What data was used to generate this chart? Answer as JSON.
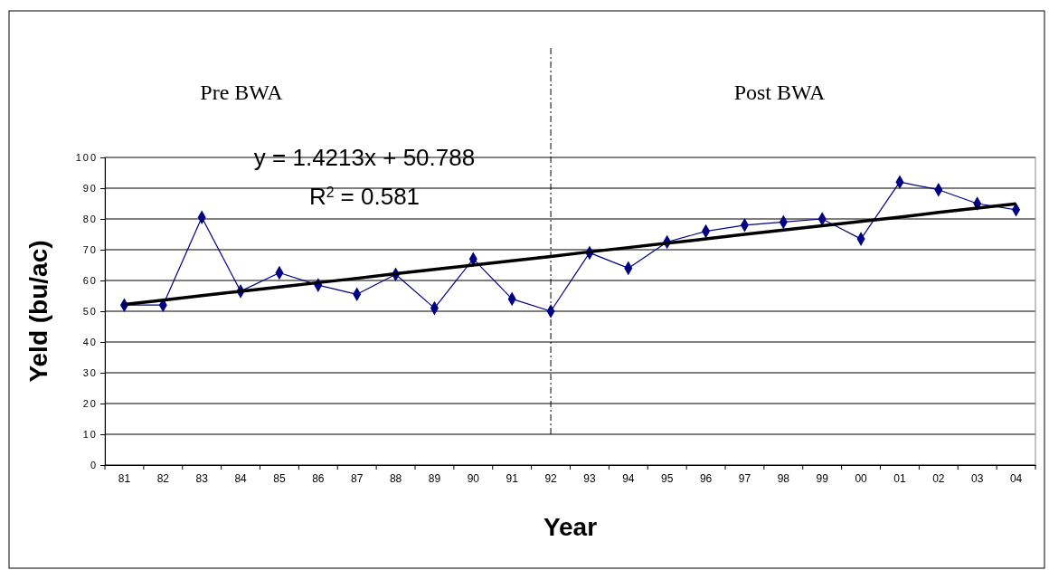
{
  "chart_data": {
    "type": "line",
    "xlabel": "Year",
    "ylabel": "Yeld (bu/ac)",
    "categories": [
      "81",
      "82",
      "83",
      "84",
      "85",
      "86",
      "87",
      "88",
      "89",
      "90",
      "91",
      "92",
      "93",
      "94",
      "95",
      "96",
      "97",
      "98",
      "99",
      "00",
      "01",
      "02",
      "03",
      "04"
    ],
    "series": [
      {
        "type": "line",
        "color": "#000080",
        "marker": "diamond",
        "values": [
          52,
          52,
          80.5,
          56.5,
          62.5,
          58.5,
          55.5,
          62,
          51,
          67,
          54,
          50,
          69,
          64,
          72.5,
          76,
          78,
          79,
          80,
          73.5,
          92,
          89.5,
          85,
          83
        ]
      },
      {
        "type": "line",
        "color": "#000000",
        "marker": "none",
        "values": [
          52.2,
          53.6,
          55.1,
          56.5,
          57.9,
          59.3,
          60.7,
          62.2,
          63.6,
          65,
          66.4,
          67.8,
          69.3,
          70.7,
          72.1,
          73.5,
          75,
          76.4,
          77.8,
          79.2,
          80.6,
          82.1,
          83.5,
          84.9
        ]
      }
    ],
    "ylim": [
      0,
      100
    ],
    "yticks": [
      0,
      10,
      20,
      30,
      40,
      50,
      60,
      70,
      80,
      90,
      100
    ],
    "grid": "y",
    "ref_lines": [
      {
        "axis": "x",
        "value": "92",
        "line_style": "dashdot",
        "color": "#000000"
      }
    ],
    "annotations": [
      "Pre BWA",
      "Post BWA",
      "y = 1.4213x + 50.788",
      "R$^{2}$ = 0.581"
    ]
  }
}
